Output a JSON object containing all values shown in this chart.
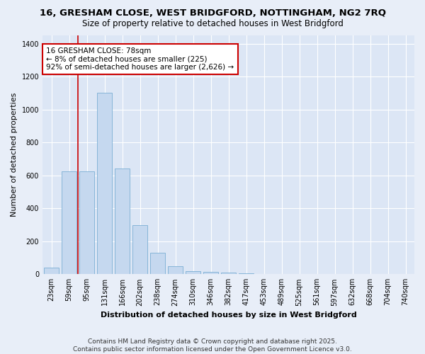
{
  "title_line1": "16, GRESHAM CLOSE, WEST BRIDGFORD, NOTTINGHAM, NG2 7RQ",
  "title_line2": "Size of property relative to detached houses in West Bridgford",
  "xlabel": "Distribution of detached houses by size in West Bridgford",
  "ylabel": "Number of detached properties",
  "footer_line1": "Contains HM Land Registry data © Crown copyright and database right 2025.",
  "footer_line2": "Contains public sector information licensed under the Open Government Licence v3.0.",
  "categories": [
    "23sqm",
    "59sqm",
    "95sqm",
    "131sqm",
    "166sqm",
    "202sqm",
    "238sqm",
    "274sqm",
    "310sqm",
    "346sqm",
    "382sqm",
    "417sqm",
    "453sqm",
    "489sqm",
    "525sqm",
    "561sqm",
    "597sqm",
    "632sqm",
    "668sqm",
    "704sqm",
    "740sqm"
  ],
  "values": [
    40,
    625,
    625,
    1100,
    640,
    300,
    130,
    50,
    20,
    15,
    10,
    5,
    0,
    0,
    0,
    0,
    0,
    0,
    0,
    0,
    0
  ],
  "bar_color": "#c5d8ef",
  "bar_edge_color": "#7bafd4",
  "bar_width": 0.85,
  "red_line_x": 1.48,
  "annotation_text": "16 GRESHAM CLOSE: 78sqm\n← 8% of detached houses are smaller (225)\n92% of semi-detached houses are larger (2,626) →",
  "annotation_box_color": "#ffffff",
  "annotation_box_edge_color": "#cc0000",
  "annotation_text_color": "#000000",
  "red_line_color": "#cc0000",
  "background_color": "#e8eef8",
  "plot_bg_color": "#dce6f5",
  "ylim": [
    0,
    1450
  ],
  "grid_color": "#ffffff",
  "title_fontsize": 9.5,
  "subtitle_fontsize": 8.5,
  "axis_label_fontsize": 8,
  "tick_fontsize": 7,
  "annotation_fontsize": 7.5,
  "footer_fontsize": 6.5
}
